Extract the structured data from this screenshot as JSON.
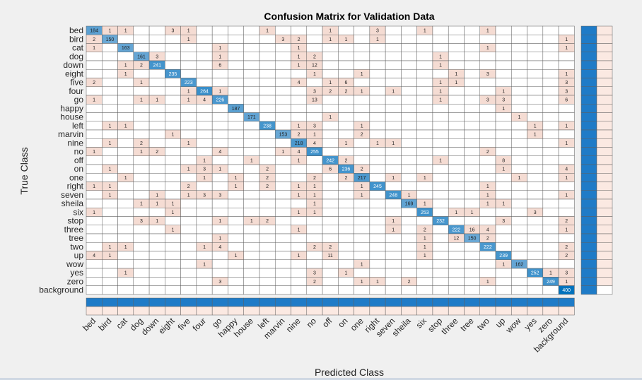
{
  "window": {},
  "chart_data": {
    "type": "heatmap",
    "title": "Confusion Matrix for Validation Data",
    "xlabel": "Predicted Class",
    "ylabel": "True Class",
    "classes": [
      "bed",
      "bird",
      "cat",
      "dog",
      "down",
      "eight",
      "five",
      "four",
      "go",
      "happy",
      "house",
      "left",
      "marvin",
      "nine",
      "no",
      "off",
      "on",
      "one",
      "right",
      "seven",
      "sheila",
      "six",
      "stop",
      "three",
      "tree",
      "two",
      "up",
      "wow",
      "yes",
      "zero",
      "background"
    ],
    "nonzero_cells": [
      [
        "bed",
        "bed",
        184
      ],
      [
        "bed",
        "bird",
        1
      ],
      [
        "bed",
        "cat",
        1
      ],
      [
        "bed",
        "eight",
        3
      ],
      [
        "bed",
        "five",
        1
      ],
      [
        "bed",
        "left",
        1
      ],
      [
        "bed",
        "off",
        1
      ],
      [
        "bed",
        "right",
        3
      ],
      [
        "bed",
        "six",
        1
      ],
      [
        "bed",
        "two",
        1
      ],
      [
        "bird",
        "bed",
        2
      ],
      [
        "bird",
        "bird",
        150
      ],
      [
        "bird",
        "five",
        1
      ],
      [
        "bird",
        "marvin",
        3
      ],
      [
        "bird",
        "nine",
        2
      ],
      [
        "bird",
        "off",
        1
      ],
      [
        "bird",
        "on",
        1
      ],
      [
        "bird",
        "right",
        1
      ],
      [
        "bird",
        "background",
        1
      ],
      [
        "cat",
        "bed",
        1
      ],
      [
        "cat",
        "cat",
        163
      ],
      [
        "cat",
        "go",
        1
      ],
      [
        "cat",
        "nine",
        1
      ],
      [
        "cat",
        "two",
        1
      ],
      [
        "cat",
        "background",
        1
      ],
      [
        "dog",
        "dog",
        161
      ],
      [
        "dog",
        "down",
        3
      ],
      [
        "dog",
        "go",
        1
      ],
      [
        "dog",
        "nine",
        1
      ],
      [
        "dog",
        "no",
        2
      ],
      [
        "dog",
        "stop",
        1
      ],
      [
        "down",
        "cat",
        1
      ],
      [
        "down",
        "dog",
        2
      ],
      [
        "down",
        "down",
        241
      ],
      [
        "down",
        "go",
        6
      ],
      [
        "down",
        "nine",
        1
      ],
      [
        "down",
        "no",
        12
      ],
      [
        "down",
        "stop",
        1
      ],
      [
        "eight",
        "cat",
        1
      ],
      [
        "eight",
        "eight",
        235
      ],
      [
        "eight",
        "no",
        1
      ],
      [
        "eight",
        "one",
        1
      ],
      [
        "eight",
        "three",
        1
      ],
      [
        "eight",
        "two",
        3
      ],
      [
        "eight",
        "background",
        1
      ],
      [
        "five",
        "bed",
        2
      ],
      [
        "five",
        "dog",
        1
      ],
      [
        "five",
        "five",
        223
      ],
      [
        "five",
        "nine",
        4
      ],
      [
        "five",
        "off",
        1
      ],
      [
        "five",
        "on",
        6
      ],
      [
        "five",
        "stop",
        1
      ],
      [
        "five",
        "three",
        1
      ],
      [
        "five",
        "background",
        3
      ],
      [
        "four",
        "five",
        1
      ],
      [
        "four",
        "four",
        264
      ],
      [
        "four",
        "go",
        1
      ],
      [
        "four",
        "no",
        3
      ],
      [
        "four",
        "off",
        2
      ],
      [
        "four",
        "on",
        2
      ],
      [
        "four",
        "one",
        1
      ],
      [
        "four",
        "seven",
        1
      ],
      [
        "four",
        "stop",
        1
      ],
      [
        "four",
        "up",
        1
      ],
      [
        "four",
        "background",
        3
      ],
      [
        "go",
        "bed",
        1
      ],
      [
        "go",
        "dog",
        1
      ],
      [
        "go",
        "down",
        1
      ],
      [
        "go",
        "five",
        1
      ],
      [
        "go",
        "four",
        4
      ],
      [
        "go",
        "go",
        226
      ],
      [
        "go",
        "no",
        13
      ],
      [
        "go",
        "stop",
        1
      ],
      [
        "go",
        "two",
        3
      ],
      [
        "go",
        "up",
        3
      ],
      [
        "go",
        "background",
        6
      ],
      [
        "happy",
        "happy",
        187
      ],
      [
        "happy",
        "up",
        1
      ],
      [
        "house",
        "house",
        171
      ],
      [
        "house",
        "off",
        1
      ],
      [
        "house",
        "wow",
        1
      ],
      [
        "left",
        "bird",
        1
      ],
      [
        "left",
        "cat",
        1
      ],
      [
        "left",
        "left",
        238
      ],
      [
        "left",
        "nine",
        1
      ],
      [
        "left",
        "no",
        3
      ],
      [
        "left",
        "one",
        1
      ],
      [
        "left",
        "yes",
        1
      ],
      [
        "left",
        "background",
        1
      ],
      [
        "marvin",
        "eight",
        1
      ],
      [
        "marvin",
        "marvin",
        153
      ],
      [
        "marvin",
        "nine",
        2
      ],
      [
        "marvin",
        "no",
        1
      ],
      [
        "marvin",
        "one",
        2
      ],
      [
        "marvin",
        "yes",
        1
      ],
      [
        "nine",
        "bird",
        1
      ],
      [
        "nine",
        "dog",
        2
      ],
      [
        "nine",
        "five",
        1
      ],
      [
        "nine",
        "nine",
        218
      ],
      [
        "nine",
        "no",
        4
      ],
      [
        "nine",
        "on",
        1
      ],
      [
        "nine",
        "right",
        1
      ],
      [
        "nine",
        "seven",
        1
      ],
      [
        "nine",
        "background",
        1
      ],
      [
        "no",
        "bed",
        1
      ],
      [
        "no",
        "dog",
        1
      ],
      [
        "no",
        "down",
        2
      ],
      [
        "no",
        "go",
        4
      ],
      [
        "no",
        "marvin",
        1
      ],
      [
        "no",
        "nine",
        4
      ],
      [
        "no",
        "no",
        255
      ],
      [
        "no",
        "two",
        2
      ],
      [
        "off",
        "four",
        1
      ],
      [
        "off",
        "house",
        1
      ],
      [
        "off",
        "nine",
        1
      ],
      [
        "off",
        "off",
        242
      ],
      [
        "off",
        "on",
        2
      ],
      [
        "off",
        "stop",
        1
      ],
      [
        "off",
        "up",
        8
      ],
      [
        "on",
        "bird",
        1
      ],
      [
        "on",
        "five",
        1
      ],
      [
        "on",
        "four",
        3
      ],
      [
        "on",
        "go",
        1
      ],
      [
        "on",
        "left",
        2
      ],
      [
        "on",
        "off",
        6
      ],
      [
        "on",
        "on",
        236
      ],
      [
        "on",
        "one",
        2
      ],
      [
        "on",
        "up",
        1
      ],
      [
        "on",
        "background",
        4
      ],
      [
        "one",
        "cat",
        1
      ],
      [
        "one",
        "four",
        1
      ],
      [
        "one",
        "happy",
        1
      ],
      [
        "one",
        "left",
        2
      ],
      [
        "one",
        "no",
        2
      ],
      [
        "one",
        "on",
        2
      ],
      [
        "one",
        "one",
        217
      ],
      [
        "one",
        "seven",
        1
      ],
      [
        "one",
        "six",
        1
      ],
      [
        "one",
        "wow",
        1
      ],
      [
        "one",
        "background",
        1
      ],
      [
        "right",
        "bed",
        1
      ],
      [
        "right",
        "bird",
        1
      ],
      [
        "right",
        "five",
        2
      ],
      [
        "right",
        "happy",
        1
      ],
      [
        "right",
        "left",
        2
      ],
      [
        "right",
        "nine",
        1
      ],
      [
        "right",
        "no",
        1
      ],
      [
        "right",
        "one",
        1
      ],
      [
        "right",
        "right",
        245
      ],
      [
        "right",
        "two",
        1
      ],
      [
        "seven",
        "bird",
        1
      ],
      [
        "seven",
        "down",
        1
      ],
      [
        "seven",
        "five",
        1
      ],
      [
        "seven",
        "four",
        3
      ],
      [
        "seven",
        "go",
        3
      ],
      [
        "seven",
        "nine",
        1
      ],
      [
        "seven",
        "no",
        1
      ],
      [
        "seven",
        "one",
        1
      ],
      [
        "seven",
        "seven",
        248
      ],
      [
        "seven",
        "sheila",
        1
      ],
      [
        "seven",
        "two",
        1
      ],
      [
        "seven",
        "background",
        1
      ],
      [
        "sheila",
        "dog",
        1
      ],
      [
        "sheila",
        "down",
        1
      ],
      [
        "sheila",
        "eight",
        1
      ],
      [
        "sheila",
        "no",
        1
      ],
      [
        "sheila",
        "sheila",
        169
      ],
      [
        "sheila",
        "six",
        1
      ],
      [
        "sheila",
        "two",
        1
      ],
      [
        "sheila",
        "up",
        1
      ],
      [
        "six",
        "bed",
        1
      ],
      [
        "six",
        "eight",
        1
      ],
      [
        "six",
        "nine",
        1
      ],
      [
        "six",
        "no",
        1
      ],
      [
        "six",
        "six",
        253
      ],
      [
        "six",
        "three",
        1
      ],
      [
        "six",
        "tree",
        1
      ],
      [
        "six",
        "yes",
        3
      ],
      [
        "stop",
        "dog",
        3
      ],
      [
        "stop",
        "down",
        1
      ],
      [
        "stop",
        "go",
        1
      ],
      [
        "stop",
        "house",
        1
      ],
      [
        "stop",
        "left",
        2
      ],
      [
        "stop",
        "seven",
        1
      ],
      [
        "stop",
        "stop",
        232
      ],
      [
        "stop",
        "up",
        3
      ],
      [
        "stop",
        "background",
        2
      ],
      [
        "three",
        "eight",
        1
      ],
      [
        "three",
        "nine",
        1
      ],
      [
        "three",
        "seven",
        1
      ],
      [
        "three",
        "six",
        2
      ],
      [
        "three",
        "three",
        222
      ],
      [
        "three",
        "tree",
        16
      ],
      [
        "three",
        "two",
        4
      ],
      [
        "three",
        "background",
        1
      ],
      [
        "tree",
        "go",
        1
      ],
      [
        "tree",
        "six",
        1
      ],
      [
        "tree",
        "three",
        12
      ],
      [
        "tree",
        "tree",
        150
      ],
      [
        "tree",
        "two",
        2
      ],
      [
        "two",
        "bird",
        1
      ],
      [
        "two",
        "cat",
        1
      ],
      [
        "two",
        "four",
        1
      ],
      [
        "two",
        "go",
        4
      ],
      [
        "two",
        "no",
        2
      ],
      [
        "two",
        "off",
        2
      ],
      [
        "two",
        "six",
        1
      ],
      [
        "two",
        "two",
        222
      ],
      [
        "two",
        "background",
        2
      ],
      [
        "up",
        "bed",
        4
      ],
      [
        "up",
        "bird",
        1
      ],
      [
        "up",
        "happy",
        1
      ],
      [
        "up",
        "nine",
        1
      ],
      [
        "up",
        "off",
        11
      ],
      [
        "up",
        "six",
        1
      ],
      [
        "up",
        "up",
        239
      ],
      [
        "up",
        "background",
        2
      ],
      [
        "wow",
        "four",
        1
      ],
      [
        "wow",
        "one",
        1
      ],
      [
        "wow",
        "up",
        1
      ],
      [
        "wow",
        "wow",
        162
      ],
      [
        "yes",
        "cat",
        1
      ],
      [
        "yes",
        "no",
        3
      ],
      [
        "yes",
        "on",
        1
      ],
      [
        "yes",
        "yes",
        252
      ],
      [
        "yes",
        "zero",
        1
      ],
      [
        "yes",
        "background",
        3
      ],
      [
        "zero",
        "go",
        3
      ],
      [
        "zero",
        "no",
        2
      ],
      [
        "zero",
        "one",
        1
      ],
      [
        "zero",
        "right",
        1
      ],
      [
        "zero",
        "sheila",
        2
      ],
      [
        "zero",
        "two",
        1
      ],
      [
        "zero",
        "zero",
        249
      ],
      [
        "zero",
        "background",
        1
      ],
      [
        "background",
        "background",
        400
      ]
    ],
    "colors": {
      "diagonal_dark": "#0072bd",
      "diagonal_light": "#a9c8e3",
      "off_diagonal": "#f5dcd3",
      "empty": "#ffffff",
      "summary_dark": "#1f7bc7",
      "summary_light": "#fbe9e2",
      "grid": "#5f5f5f",
      "background": "#f0f0f0"
    }
  }
}
